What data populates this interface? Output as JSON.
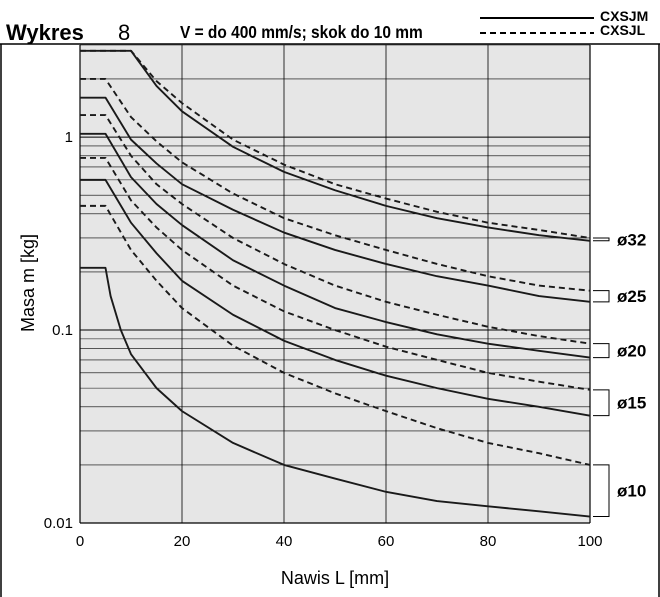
{
  "header": {
    "title_word": "Wykres",
    "title_number": "8",
    "condition": "V = do 400 mm/s; skok do 10 mm",
    "legend": [
      {
        "label": "CXSJM",
        "style": "solid"
      },
      {
        "label": "CXSJL",
        "style": "dashed"
      }
    ]
  },
  "chart_data": {
    "type": "line",
    "title": "",
    "xlabel": "Nawis L [mm]",
    "ylabel": "Masa m [kg]",
    "xlim": [
      0,
      100
    ],
    "ylim": [
      0.01,
      3
    ],
    "y_scale": "log",
    "x_ticks": [
      "0",
      "20",
      "40",
      "60",
      "80",
      "100"
    ],
    "y_ticks": [
      {
        "value": 0.01,
        "label": "0.01"
      },
      {
        "value": 0.1,
        "label": "0.1"
      },
      {
        "value": 1,
        "label": "1"
      }
    ],
    "grid": true,
    "plot_background": "#e6e6e6",
    "line_color": "#1a1a1a",
    "series": [
      {
        "name": "CXSJM",
        "size": "ø32",
        "style": "solid",
        "flat": 2.8,
        "knee": 10,
        "x": [
          10,
          15,
          20,
          30,
          40,
          50,
          60,
          70,
          80,
          90,
          100
        ],
        "y": [
          2.8,
          1.84,
          1.36,
          0.89,
          0.66,
          0.53,
          0.44,
          0.38,
          0.34,
          0.31,
          0.29
        ]
      },
      {
        "name": "CXSJL",
        "size": "ø32",
        "style": "dashed",
        "flat": 2.8,
        "knee": 10,
        "x": [
          10,
          15,
          20,
          30,
          40,
          50,
          60,
          70,
          80,
          90,
          100
        ],
        "y": [
          2.8,
          1.95,
          1.5,
          0.97,
          0.72,
          0.57,
          0.48,
          0.41,
          0.36,
          0.33,
          0.3
        ]
      },
      {
        "name": "CXSJM",
        "size": "ø25",
        "style": "solid",
        "flat": 1.6,
        "knee": 5,
        "x": [
          5,
          10,
          15,
          20,
          30,
          40,
          50,
          60,
          70,
          80,
          90,
          100
        ],
        "y": [
          1.6,
          0.97,
          0.73,
          0.57,
          0.42,
          0.32,
          0.26,
          0.22,
          0.19,
          0.17,
          0.15,
          0.14
        ]
      },
      {
        "name": "CXSJL",
        "size": "ø25",
        "style": "dashed",
        "flat": 2.0,
        "knee": 5,
        "x": [
          5,
          10,
          15,
          20,
          30,
          40,
          50,
          60,
          70,
          80,
          90,
          100
        ],
        "y": [
          2.0,
          1.27,
          0.95,
          0.74,
          0.51,
          0.38,
          0.31,
          0.26,
          0.22,
          0.19,
          0.17,
          0.16
        ]
      },
      {
        "name": "CXSJM",
        "size": "ø20",
        "style": "solid",
        "flat": 1.04,
        "knee": 5,
        "x": [
          5,
          10,
          15,
          20,
          30,
          40,
          50,
          60,
          70,
          80,
          90,
          100
        ],
        "y": [
          1.04,
          0.62,
          0.45,
          0.35,
          0.23,
          0.17,
          0.13,
          0.11,
          0.095,
          0.085,
          0.078,
          0.072
        ]
      },
      {
        "name": "CXSJL",
        "size": "ø20",
        "style": "dashed",
        "flat": 1.3,
        "knee": 5,
        "x": [
          5,
          10,
          15,
          20,
          30,
          40,
          50,
          60,
          70,
          80,
          90,
          100
        ],
        "y": [
          1.3,
          0.8,
          0.57,
          0.45,
          0.3,
          0.22,
          0.17,
          0.14,
          0.12,
          0.104,
          0.093,
          0.085
        ]
      },
      {
        "name": "CXSJM",
        "size": "ø15",
        "style": "solid",
        "flat": 0.6,
        "knee": 5,
        "x": [
          5,
          10,
          15,
          20,
          30,
          40,
          50,
          60,
          70,
          80,
          90,
          100
        ],
        "y": [
          0.6,
          0.36,
          0.25,
          0.18,
          0.12,
          0.088,
          0.07,
          0.058,
          0.05,
          0.044,
          0.04,
          0.036
        ]
      },
      {
        "name": "CXSJL",
        "size": "ø15",
        "style": "dashed",
        "flat": 0.78,
        "knee": 5,
        "x": [
          5,
          10,
          15,
          20,
          30,
          40,
          50,
          60,
          70,
          80,
          90,
          100
        ],
        "y": [
          0.78,
          0.47,
          0.34,
          0.26,
          0.17,
          0.125,
          0.1,
          0.082,
          0.07,
          0.06,
          0.054,
          0.049
        ]
      },
      {
        "name": "CXSJM",
        "size": "ø10",
        "style": "solid",
        "flat": 0.21,
        "knee": 5,
        "x": [
          5,
          6,
          8,
          10,
          15,
          20,
          30,
          40,
          50,
          60,
          70,
          80,
          90,
          100
        ],
        "y": [
          0.21,
          0.15,
          0.1,
          0.075,
          0.05,
          0.038,
          0.026,
          0.02,
          0.017,
          0.0145,
          0.013,
          0.0122,
          0.0115,
          0.0108
        ]
      },
      {
        "name": "CXSJL",
        "size": "ø10",
        "style": "dashed",
        "flat": 0.44,
        "knee": 5,
        "x": [
          5,
          10,
          15,
          20,
          30,
          40,
          50,
          60,
          70,
          80,
          90,
          100
        ],
        "y": [
          0.44,
          0.26,
          0.18,
          0.13,
          0.083,
          0.06,
          0.047,
          0.038,
          0.031,
          0.026,
          0.023,
          0.02
        ]
      }
    ],
    "size_labels": [
      "ø32",
      "ø25",
      "ø20",
      "ø15",
      "ø10"
    ]
  }
}
